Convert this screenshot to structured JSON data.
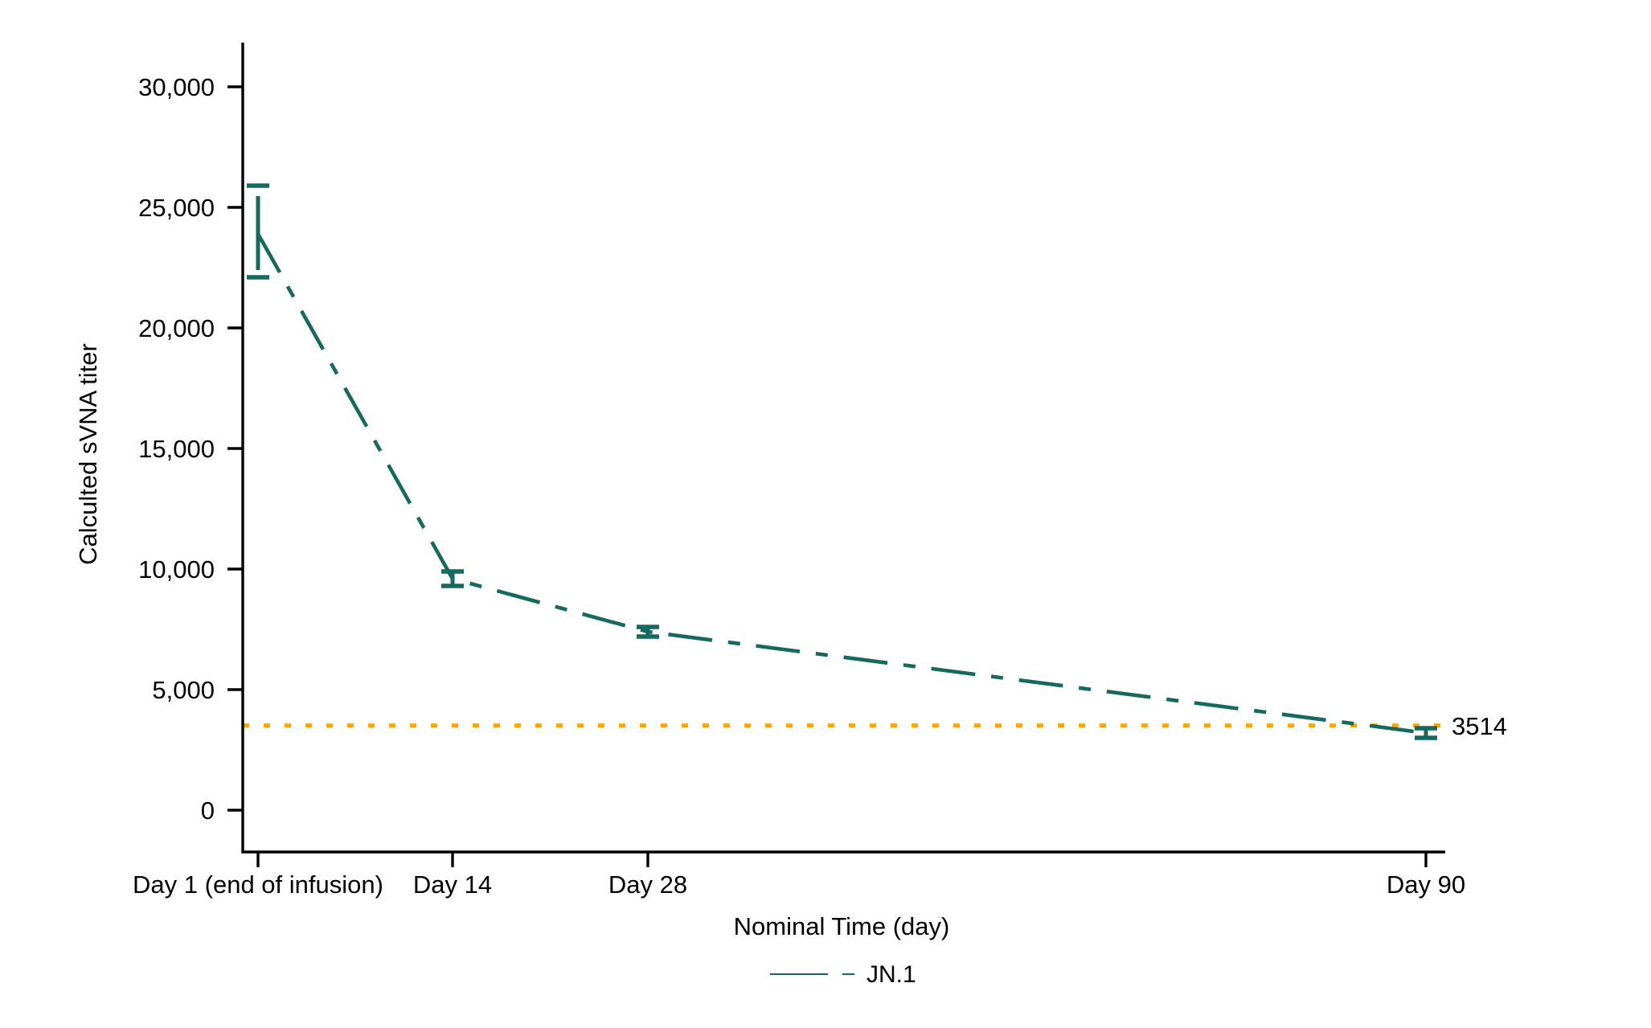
{
  "figure": {
    "background": "#ffffff",
    "text_color": "#000000"
  },
  "chart_data": {
    "type": "line",
    "title": "",
    "xlabel": "Nominal Time (day)",
    "ylabel": "Calculted sVNA titer",
    "x_categories": [
      "Day 1 (end of infusion)",
      "Day 14",
      "Day 28",
      "Day 90"
    ],
    "series": [
      {
        "name": "JN.1",
        "color": "#15695e",
        "line_style": "dash-dot",
        "values": [
          23900,
          9600,
          7400,
          3200
        ],
        "ci_low": [
          22100,
          9300,
          7200,
          3000
        ],
        "ci_high": [
          25900,
          9900,
          7600,
          3400
        ]
      }
    ],
    "error_bars": true,
    "reference_line": {
      "value": 3514,
      "label": "3514",
      "color": "#ffa502",
      "style": "dotted"
    },
    "y_axis": {
      "ticks": [
        0,
        5000,
        10000,
        15000,
        20000,
        25000,
        30000
      ],
      "tick_labels": [
        "0",
        "5,000",
        "10,000",
        "15,000",
        "20,000",
        "25,000",
        "30,000"
      ],
      "range": [
        0,
        31800
      ]
    },
    "legend": {
      "position": "bottom-center",
      "entries": [
        {
          "label": "JN.1",
          "color": "#15695e"
        }
      ]
    },
    "grid": false
  }
}
